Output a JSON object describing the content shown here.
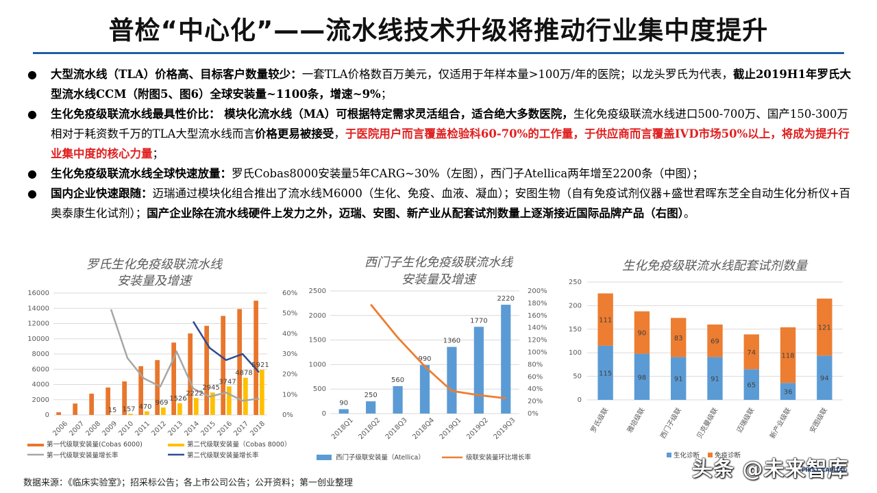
{
  "title": "普检“中心化”——流水线技术升级将推动行业集中度提升",
  "bullets": [
    {
      "parts": [
        {
          "t": "大型流水线（TLA）价格高、目标客户数量较少：",
          "s": "b"
        },
        {
          "t": "一套TLA价格数百万美元，仅适用于年样本量>100万/年的医院；以龙头罗氏为代表，",
          "s": ""
        },
        {
          "t": "截止2019H1年罗氏大型流水线CCM（附图5、图6）全球安装量~1100条，增速~9%",
          "s": "b"
        },
        {
          "t": "；",
          "s": ""
        }
      ]
    },
    {
      "parts": [
        {
          "t": "生化免疫级联流水线最具性价比： 模块化流水线（MA）可根据特定需求灵活组合，适合绝大多数医院，",
          "s": "b"
        },
        {
          "t": "生化免疫级联流水线进口500-700万、国产150-300万相对于耗资数千万的TLA大型流水线而言",
          "s": ""
        },
        {
          "t": "价格更易被接受",
          "s": "b"
        },
        {
          "t": "，",
          "s": ""
        },
        {
          "t": "于医院用户而言覆盖检验科60-70%的工作量，于供应商而言覆盖IVD市场50%以上，将成为提升行业集中度的核心力量",
          "s": "red"
        },
        {
          "t": "；",
          "s": ""
        }
      ]
    },
    {
      "parts": [
        {
          "t": "生化免疫级联流水线全球快速放量：",
          "s": "b"
        },
        {
          "t": "罗氏Cobas8000安装量5年CARG~30%（左图），西门子Atellica两年增至2200条（中图）；",
          "s": ""
        }
      ]
    },
    {
      "parts": [
        {
          "t": "国内企业快速跟随：",
          "s": "b"
        },
        {
          "t": "迈瑞通过模块化组合推出了流水线M6000（生化、免疫、血液、凝血）；安图生物（自有免疫试剂仪器+盛世君晖东芝全自动生化分析仪+百奥泰康生化试剂）；",
          "s": ""
        },
        {
          "t": "国产企业除在流水线硬件上发力之外，迈瑞、安图、新产业从配套试剂数量上逐渐接近国际品牌产品（右图）",
          "s": "b"
        },
        {
          "t": "。",
          "s": ""
        }
      ]
    }
  ],
  "chart_data": [
    {
      "type": "bar",
      "title": "罗氏生化免疫级联流水线\n安装量及增速",
      "categories": [
        "2006",
        "2007",
        "2008",
        "2009",
        "2010",
        "2011",
        "2012",
        "2013",
        "2014",
        "2015",
        "2016",
        "2017",
        "2018"
      ],
      "ylim": [
        0,
        16000
      ],
      "ylim_right": [
        0,
        60
      ],
      "y_ticks": [
        "0",
        "2000",
        "4000",
        "6000",
        "8000",
        "10000",
        "12000",
        "14000",
        "16000"
      ],
      "y_ticks_right": [
        "0%",
        "10%",
        "20%",
        "30%",
        "40%",
        "50%",
        "60%"
      ],
      "series": [
        {
          "name": "第一代级联安装量(Cobas 6000)",
          "kind": "bar",
          "color": "#e8762c",
          "values": [
            350,
            1500,
            2800,
            3600,
            4400,
            6400,
            7200,
            9500,
            10700,
            11700,
            13000,
            13900,
            15000
          ]
        },
        {
          "name": "第二代级联安装量（Cobas 8000）",
          "kind": "bar",
          "color": "#ffc000",
          "values": [
            null,
            null,
            null,
            15,
            157,
            470,
            969,
            1526,
            2222,
            2945,
            3747,
            4878,
            5921
          ]
        },
        {
          "name": "第一代级联安装量增长率",
          "kind": "line",
          "axis": "right",
          "color": "#a6a6a6",
          "values": [
            null,
            null,
            null,
            52,
            28,
            18,
            14,
            31,
            13,
            9,
            11,
            7,
            8
          ]
        },
        {
          "name": "第二代级联安装量增长率",
          "kind": "line",
          "axis": "right",
          "color": "#2f4b8f",
          "values": [
            null,
            null,
            null,
            null,
            null,
            null,
            null,
            null,
            46,
            33,
            27,
            30,
            21
          ]
        }
      ],
      "data_labels": [
        "15",
        "157",
        "470",
        "969",
        "1526",
        "2222",
        "2945",
        "3747",
        "4878",
        "5921"
      ]
    },
    {
      "type": "bar",
      "title": "西门子生化免疫级联流水线\n安装量及增速",
      "categories": [
        "2018Q1",
        "2018Q2",
        "2018Q3",
        "2018Q4",
        "2019Q1",
        "2019Q2",
        "2019Q3"
      ],
      "ylim": [
        0,
        2500
      ],
      "ylim_right": [
        0,
        200
      ],
      "y_ticks": [
        "0",
        "500",
        "1000",
        "1500",
        "2000",
        "2500"
      ],
      "y_ticks_right": [
        "0%",
        "20%",
        "40%",
        "60%",
        "80%",
        "100%",
        "120%",
        "140%",
        "160%",
        "180%",
        "200%"
      ],
      "series": [
        {
          "name": "西门子级联安装量（Atellica）",
          "kind": "bar",
          "color": "#5b9bd5",
          "values": [
            90,
            250,
            560,
            990,
            1360,
            1770,
            2220
          ]
        },
        {
          "name": "级联安装量环比增长率",
          "kind": "line",
          "axis": "right",
          "color": "#ed7d31",
          "values": [
            null,
            178,
            124,
            77,
            37,
            30,
            25
          ]
        }
      ]
    },
    {
      "type": "bar",
      "stacked": true,
      "title": "生化免疫级联流水线配套试剂数量",
      "categories": [
        "罗氏级联",
        "雅培级联",
        "西门子级联",
        "贝克曼级联",
        "迈瑞级联",
        "新产业级联",
        "安图级联"
      ],
      "ylim": [
        0,
        250
      ],
      "y_ticks": [
        "0",
        "50",
        "100",
        "150",
        "200",
        "250"
      ],
      "series": [
        {
          "name": "生化诊断",
          "color": "#5b9bd5",
          "values": [
            115,
            98,
            91,
            91,
            65,
            36,
            94
          ]
        },
        {
          "name": "免疫诊断",
          "color": "#ed7d31",
          "values": [
            111,
            90,
            83,
            69,
            74,
            118,
            121
          ]
        }
      ]
    }
  ],
  "footer": "数据来源：《临床实验室》；招采标公告；各上市公司公告；公开资料；第一创业整理",
  "watermark": "头条 @未来智库",
  "logo_text": "FIRST CAPITAL"
}
